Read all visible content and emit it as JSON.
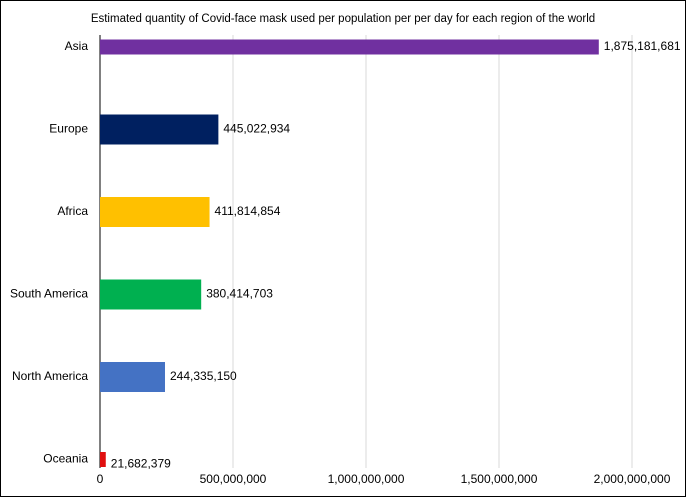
{
  "chart_data": {
    "type": "bar",
    "orientation": "horizontal",
    "title": "Estimated quantity of Covid-face mask used per population per per day for each region of the world",
    "categories": [
      "Asia",
      "Europe",
      "Africa",
      "South America",
      "North America",
      "Oceania"
    ],
    "values": [
      1875181681,
      445022934,
      411814854,
      380414703,
      244335150,
      21682379
    ],
    "value_labels": [
      "1,875,181,681",
      "445,022,934",
      "411,814,854",
      "380,414,703",
      "244,335,150",
      "21,682,379"
    ],
    "colors": [
      "#7030a0",
      "#002060",
      "#ffc000",
      "#00b050",
      "#4472c4",
      "#e01010"
    ],
    "xlim": [
      0,
      2000000000
    ],
    "xticks": [
      0,
      {
        "value": 500000000,
        "label": "500,000,000"
      },
      {
        "value": 1000000000,
        "label": "1,000,000,000"
      },
      {
        "value": 1500000000,
        "label": "1,500,000,000"
      },
      {
        "value": 2000000000,
        "label": "2,000,000,000"
      }
    ],
    "grid": true
  }
}
